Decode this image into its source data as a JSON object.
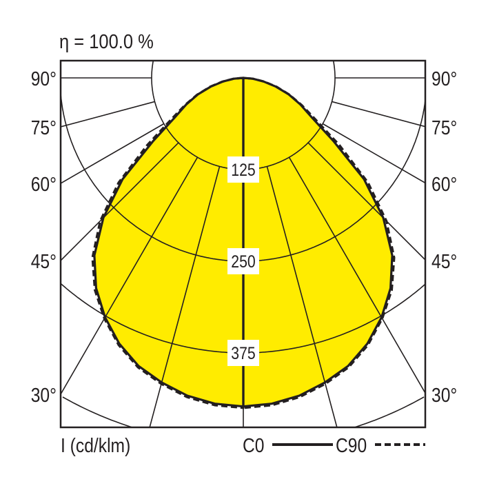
{
  "chart_data": {
    "type": "polar",
    "title": "η = 100.0 %",
    "unit_label": "I (cd/klm)",
    "radial_ticks": [
      125,
      250,
      375
    ],
    "radial_max": 500,
    "angle_labels": [
      "90°",
      "75°",
      "60°",
      "45°",
      "30°"
    ],
    "angle_label_values": [
      90,
      75,
      60,
      45,
      30
    ],
    "grid_angles": [
      0,
      15,
      30,
      45,
      60,
      75,
      90
    ],
    "fill_color": "#ffec00",
    "line_color": "#231f20",
    "angles": [
      0,
      5,
      10,
      15,
      20,
      25,
      30,
      35,
      40,
      45,
      50,
      55,
      60,
      65,
      70,
      75,
      80,
      85,
      90
    ],
    "series": [
      {
        "name": "C0",
        "style": "solid",
        "values": [
          448,
          446,
          440,
          430,
          418,
          400,
          377,
          350,
          316,
          270,
          215,
          150,
          108,
          86,
          66,
          46,
          28,
          13,
          0
        ]
      },
      {
        "name": "C90",
        "style": "dashed",
        "values": [
          450,
          448,
          442,
          432,
          420,
          402,
          379,
          353,
          320,
          276,
          222,
          160,
          114,
          88,
          67,
          47,
          29,
          13,
          0
        ]
      }
    ],
    "legend": [
      {
        "label": "C0",
        "style": "solid"
      },
      {
        "label": "C90",
        "style": "dashed"
      }
    ]
  }
}
